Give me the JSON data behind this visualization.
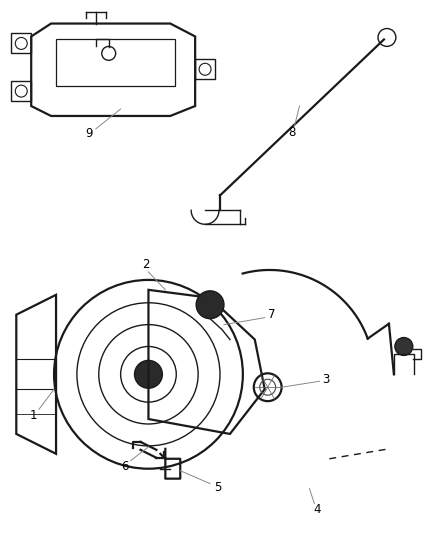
{
  "bg_color": "#ffffff",
  "line_color": "#1a1a1a",
  "label_color": "#000000",
  "label_fontsize": 8.5,
  "lw_main": 1.0,
  "lw_thick": 1.6
}
